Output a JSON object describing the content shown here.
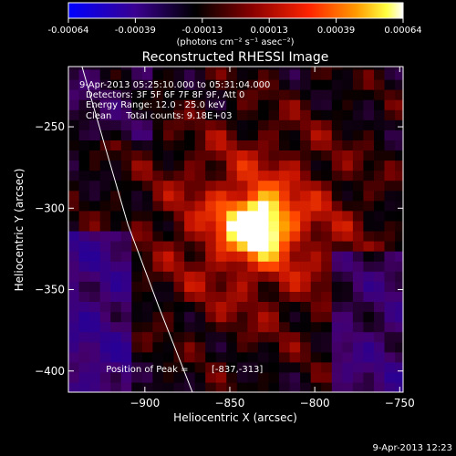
{
  "chart_data": {
    "type": "heatmap",
    "title": "Reconstructed RHESSI Image",
    "xlabel": "Heliocentric X (arcsec)",
    "ylabel": "Heliocentric Y (arcsec)",
    "xlim": [
      -945,
      -748
    ],
    "ylim": [
      -413,
      -213
    ],
    "x_ticks": [
      -900,
      -850,
      -800,
      -750
    ],
    "y_ticks": [
      -250,
      -300,
      -350,
      -400
    ],
    "colorbar": {
      "range": [
        -0.00064,
        0.00064
      ],
      "ticks": [
        "-0.00064",
        "-0.00039",
        "-0.00013",
        "0.00013",
        "0.00039",
        "0.00064"
      ],
      "unit_label": "(photons cm⁻² s⁻¹ asec⁻²)",
      "colormap": [
        "#0000ff",
        "#3a0090",
        "#000000",
        "#7a0000",
        "#ff2000",
        "#ff9000",
        "#ffff00",
        "#ffffff"
      ]
    },
    "annotations": [
      "9-Apr-2013 05:25:10.000 to 05:31:04.000",
      "Detectors: 3F 5F 6F 7F 8F 9F, Att 0",
      "Energy Range: 12.0 - 25.0 keV",
      "Clean     Total counts: 9.18E+03"
    ],
    "peak": {
      "label": "Position of Peak = ",
      "value_text": "[-837,-313]",
      "x": -837,
      "y": -313
    },
    "limb_line": {
      "points": [
        [
          -937,
          -213
        ],
        [
          -924,
          -260
        ],
        [
          -910,
          -310
        ],
        [
          -892,
          -360
        ],
        [
          -872,
          -413
        ]
      ]
    }
  },
  "footer": {
    "timestamp": "9-Apr-2013 12:23"
  }
}
